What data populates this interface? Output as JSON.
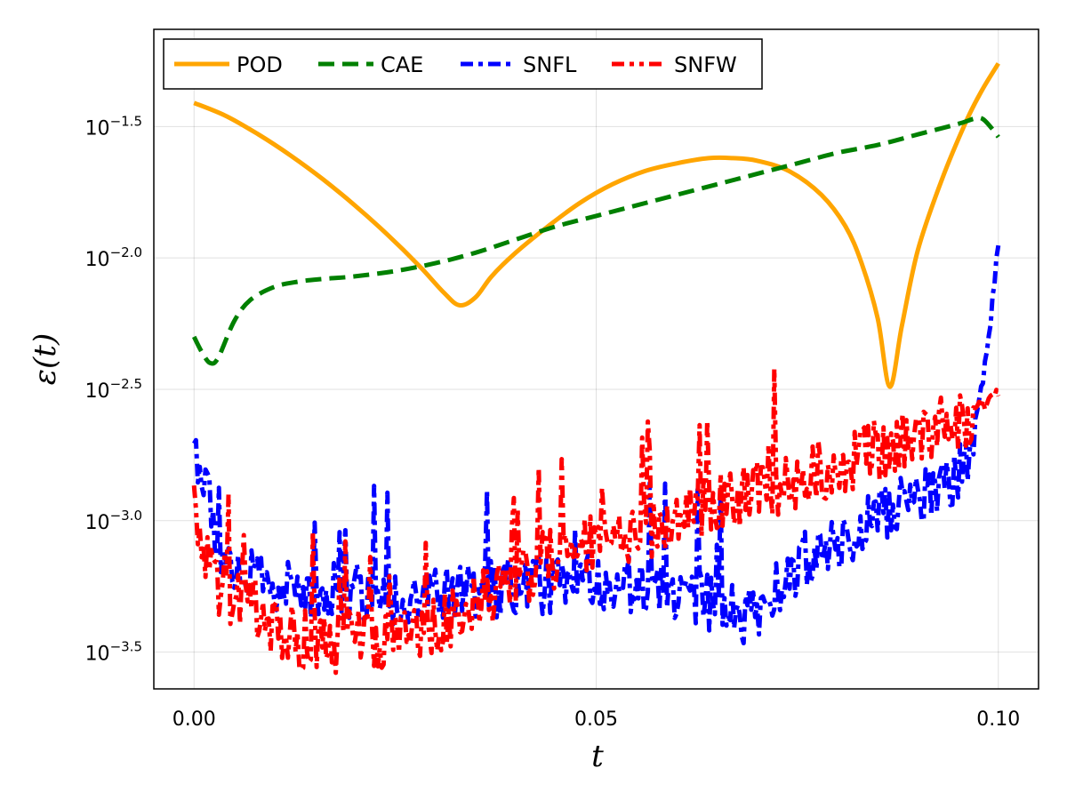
{
  "chart_data": {
    "type": "line",
    "title": "",
    "xlabel": "t",
    "ylabel": "ε(t)",
    "yscale": "log10",
    "xlim": [
      -0.005,
      0.105
    ],
    "ylim_log10": [
      -3.64,
      -1.13
    ],
    "grid": true,
    "legend_position": "top-left",
    "x_ticks": [
      0.0,
      0.05,
      0.1
    ],
    "x_tick_labels": [
      "0.00",
      "0.05",
      "0.10"
    ],
    "y_ticks_log10": [
      -1.5,
      -2.0,
      -2.5,
      -3.0,
      -3.5
    ],
    "y_tick_bases": [
      "10",
      "10",
      "10",
      "10",
      "10"
    ],
    "y_tick_exponents": [
      "−1.5",
      "−2.0",
      "−2.5",
      "−3.0",
      "−3.5"
    ],
    "series": [
      {
        "name": "POD",
        "color": "#ffa500",
        "style": "solid",
        "x": [
          0.0,
          0.004,
          0.008,
          0.012,
          0.016,
          0.02,
          0.024,
          0.028,
          0.031,
          0.033,
          0.035,
          0.037,
          0.04,
          0.044,
          0.048,
          0.052,
          0.056,
          0.06,
          0.064,
          0.067,
          0.07,
          0.074,
          0.078,
          0.081,
          0.083,
          0.085,
          0.0865,
          0.088,
          0.09,
          0.093,
          0.096,
          0.098,
          0.1
        ],
        "log10_values": [
          -1.41,
          -1.46,
          -1.53,
          -1.61,
          -1.7,
          -1.8,
          -1.91,
          -2.03,
          -2.13,
          -2.18,
          -2.15,
          -2.07,
          -1.98,
          -1.88,
          -1.79,
          -1.72,
          -1.67,
          -1.64,
          -1.62,
          -1.62,
          -1.63,
          -1.67,
          -1.76,
          -1.88,
          -2.02,
          -2.23,
          -2.49,
          -2.26,
          -1.97,
          -1.7,
          -1.48,
          -1.36,
          -1.26
        ]
      },
      {
        "name": "CAE",
        "color": "#008000",
        "style": "dashed",
        "x": [
          0.0,
          0.001,
          0.002,
          0.003,
          0.005,
          0.007,
          0.01,
          0.013,
          0.016,
          0.02,
          0.025,
          0.03,
          0.035,
          0.04,
          0.045,
          0.05,
          0.055,
          0.06,
          0.065,
          0.07,
          0.075,
          0.08,
          0.085,
          0.09,
          0.095,
          0.097,
          0.098,
          0.099,
          0.1
        ],
        "log10_values": [
          -2.3,
          -2.36,
          -2.4,
          -2.38,
          -2.24,
          -2.16,
          -2.11,
          -2.09,
          -2.08,
          -2.07,
          -2.05,
          -2.02,
          -1.98,
          -1.93,
          -1.88,
          -1.84,
          -1.8,
          -1.76,
          -1.72,
          -1.68,
          -1.64,
          -1.6,
          -1.57,
          -1.53,
          -1.49,
          -1.47,
          -1.47,
          -1.5,
          -1.54
        ]
      },
      {
        "name": "SNFL",
        "color": "#0000ff",
        "style": "dashdot",
        "x": [
          0.0,
          0.001,
          0.002,
          0.003,
          0.005,
          0.008,
          0.011,
          0.014,
          0.018,
          0.022,
          0.026,
          0.03,
          0.034,
          0.038,
          0.042,
          0.046,
          0.05,
          0.054,
          0.058,
          0.062,
          0.066,
          0.068,
          0.07,
          0.072,
          0.074,
          0.076,
          0.078,
          0.08,
          0.082,
          0.084,
          0.086,
          0.088,
          0.09,
          0.092,
          0.094,
          0.096,
          0.097,
          0.098,
          0.099,
          0.0995,
          0.1
        ],
        "log10_values": [
          -2.7,
          -2.83,
          -2.95,
          -3.1,
          -3.18,
          -3.23,
          -3.26,
          -3.27,
          -3.27,
          -3.28,
          -3.29,
          -3.28,
          -3.27,
          -3.26,
          -3.25,
          -3.24,
          -3.23,
          -3.24,
          -3.26,
          -3.29,
          -3.33,
          -3.37,
          -3.36,
          -3.28,
          -3.22,
          -3.15,
          -3.11,
          -3.08,
          -3.04,
          -3.0,
          -2.97,
          -2.94,
          -2.91,
          -2.88,
          -2.84,
          -2.77,
          -2.65,
          -2.48,
          -2.25,
          -2.1,
          -1.95
        ],
        "noise_amplitude": 0.11
      },
      {
        "name": "SNFW",
        "color": "#ff0000",
        "style": "dashdotdot",
        "x": [
          0.0,
          0.001,
          0.002,
          0.003,
          0.005,
          0.008,
          0.01,
          0.013,
          0.016,
          0.02,
          0.024,
          0.028,
          0.032,
          0.036,
          0.04,
          0.044,
          0.048,
          0.052,
          0.056,
          0.06,
          0.064,
          0.068,
          0.072,
          0.076,
          0.08,
          0.084,
          0.088,
          0.092,
          0.096,
          0.098,
          0.1
        ],
        "log10_values": [
          -2.95,
          -3.1,
          -3.22,
          -3.28,
          -3.3,
          -3.33,
          -3.4,
          -3.46,
          -3.46,
          -3.46,
          -3.45,
          -3.41,
          -3.36,
          -3.29,
          -3.22,
          -3.15,
          -3.11,
          -3.07,
          -3.03,
          -2.99,
          -2.95,
          -2.91,
          -2.87,
          -2.83,
          -2.79,
          -2.74,
          -2.7,
          -2.65,
          -2.6,
          -2.56,
          -2.52
        ],
        "noise_amplitude": 0.12
      }
    ]
  }
}
